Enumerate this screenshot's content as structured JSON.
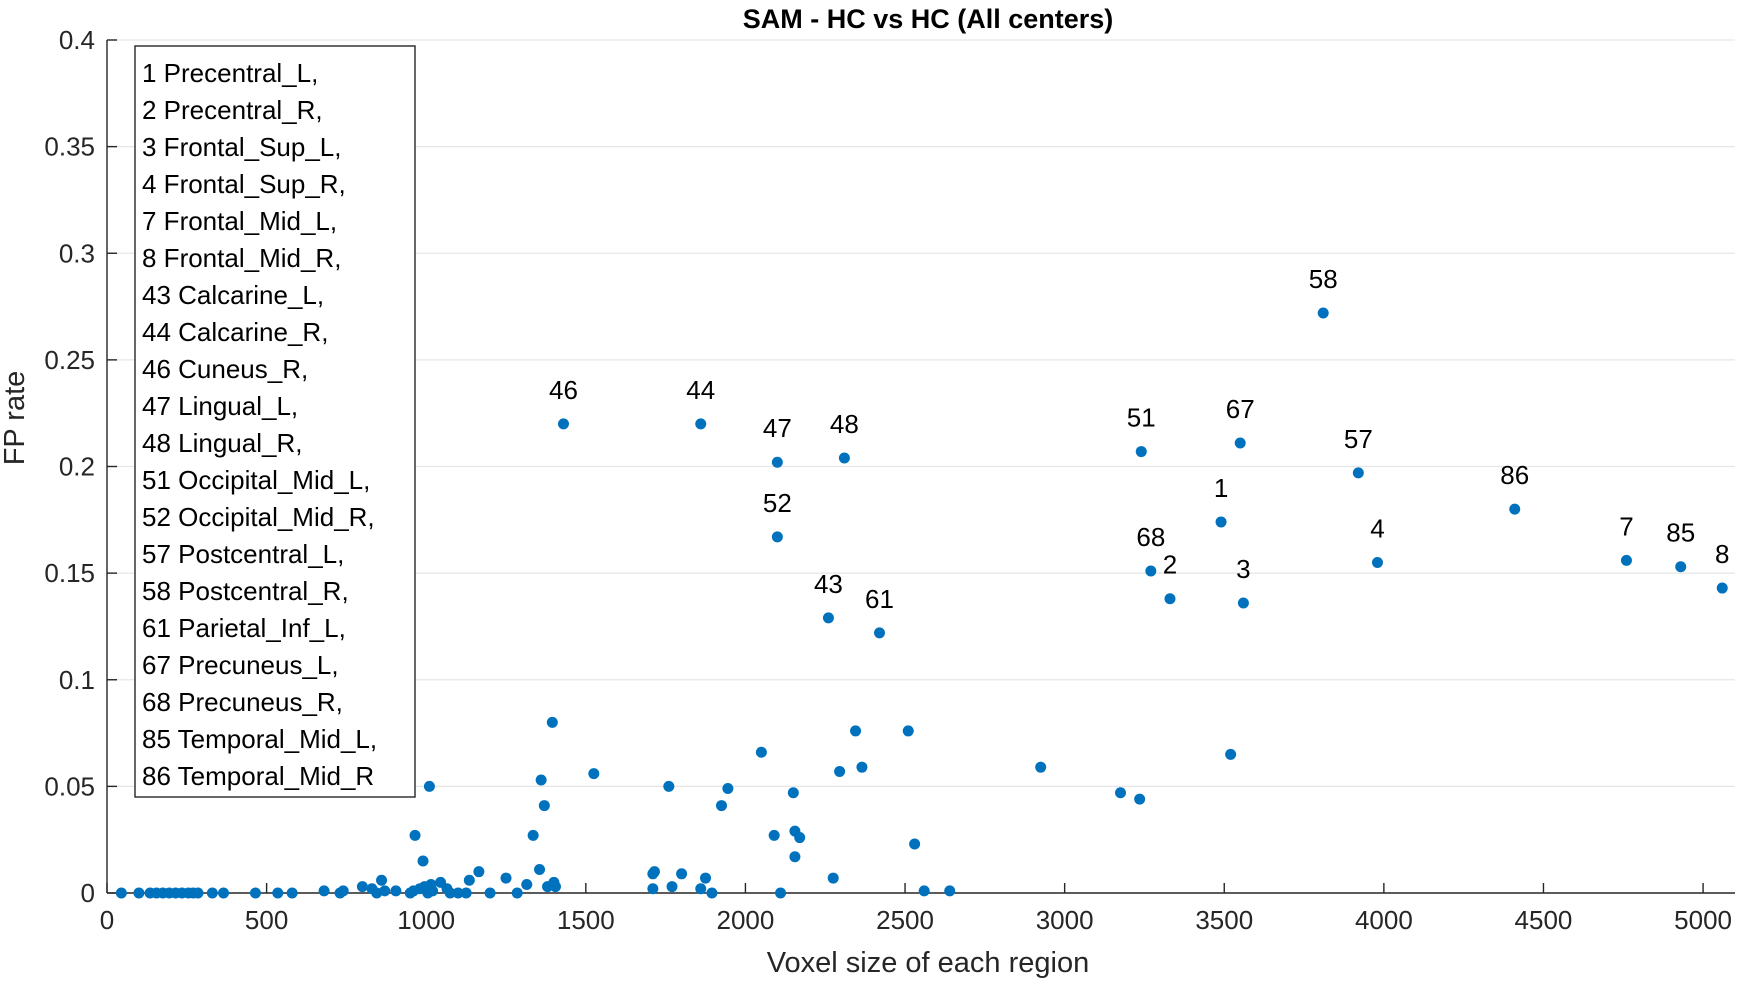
{
  "chart_data": {
    "type": "scatter",
    "title": "SAM - HC vs HC (All centers)",
    "xlabel": "Voxel size of each region",
    "ylabel": "FP rate",
    "xlim": [
      0,
      5100
    ],
    "ylim": [
      0,
      0.4
    ],
    "xticks": [
      0,
      500,
      1000,
      1500,
      2000,
      2500,
      3000,
      3500,
      4000,
      4500,
      5000
    ],
    "yticks": [
      0,
      0.05,
      0.1,
      0.15,
      0.2,
      0.25,
      0.3,
      0.35,
      0.4
    ],
    "xtick_labels": [
      "0",
      "500",
      "1000",
      "1500",
      "2000",
      "2500",
      "3000",
      "3500",
      "4000",
      "4500",
      "5000"
    ],
    "ytick_labels": [
      "0",
      "0.05",
      "0.1",
      "0.15",
      "0.2",
      "0.25",
      "0.3",
      "0.35",
      "0.4"
    ],
    "grid": "y-only",
    "marker_color": "#0072bd",
    "legend": [
      "1 Precentral_L,",
      "2 Precentral_R,",
      "3 Frontal_Sup_L,",
      "4 Frontal_Sup_R,",
      "7 Frontal_Mid_L,",
      "8 Frontal_Mid_R,",
      "43 Calcarine_L,",
      "44 Calcarine_R,",
      "46 Cuneus_R,",
      "47 Lingual_L,",
      "48 Lingual_R,",
      "51 Occipital_Mid_L,",
      "52 Occipital_Mid_R,",
      "57 Postcentral_L,",
      "58 Postcentral_R,",
      "61 Parietal_Inf_L,",
      "67 Precuneus_L,",
      "68 Precuneus_R,",
      "85 Temporal_Mid_L,",
      "86 Temporal_Mid_R"
    ],
    "labeled_points": [
      {
        "label": "1",
        "x": 3490,
        "y": 0.174
      },
      {
        "label": "2",
        "x": 3330,
        "y": 0.138
      },
      {
        "label": "3",
        "x": 3560,
        "y": 0.136
      },
      {
        "label": "4",
        "x": 3980,
        "y": 0.155
      },
      {
        "label": "7",
        "x": 4760,
        "y": 0.156
      },
      {
        "label": "8",
        "x": 5060,
        "y": 0.143
      },
      {
        "label": "43",
        "x": 2260,
        "y": 0.129
      },
      {
        "label": "44",
        "x": 1860,
        "y": 0.22
      },
      {
        "label": "46",
        "x": 1430,
        "y": 0.22
      },
      {
        "label": "47",
        "x": 2100,
        "y": 0.202
      },
      {
        "label": "48",
        "x": 2310,
        "y": 0.204
      },
      {
        "label": "51",
        "x": 3240,
        "y": 0.207
      },
      {
        "label": "52",
        "x": 2100,
        "y": 0.167
      },
      {
        "label": "57",
        "x": 3920,
        "y": 0.197
      },
      {
        "label": "58",
        "x": 3810,
        "y": 0.272
      },
      {
        "label": "61",
        "x": 2420,
        "y": 0.122
      },
      {
        "label": "67",
        "x": 3550,
        "y": 0.211
      },
      {
        "label": "68",
        "x": 3270,
        "y": 0.151
      },
      {
        "label": "85",
        "x": 4930,
        "y": 0.153
      },
      {
        "label": "86",
        "x": 4410,
        "y": 0.18
      }
    ],
    "points": [
      {
        "x": 45,
        "y": 0
      },
      {
        "x": 100,
        "y": 0
      },
      {
        "x": 135,
        "y": 0
      },
      {
        "x": 155,
        "y": 0
      },
      {
        "x": 175,
        "y": 0
      },
      {
        "x": 195,
        "y": 0
      },
      {
        "x": 215,
        "y": 0
      },
      {
        "x": 235,
        "y": 0
      },
      {
        "x": 255,
        "y": 0
      },
      {
        "x": 270,
        "y": 0
      },
      {
        "x": 285,
        "y": 0
      },
      {
        "x": 330,
        "y": 0
      },
      {
        "x": 365,
        "y": 0
      },
      {
        "x": 465,
        "y": 0
      },
      {
        "x": 535,
        "y": 0
      },
      {
        "x": 580,
        "y": 0
      },
      {
        "x": 680,
        "y": 0.001
      },
      {
        "x": 730,
        "y": 0
      },
      {
        "x": 740,
        "y": 0.001
      },
      {
        "x": 800,
        "y": 0.003
      },
      {
        "x": 830,
        "y": 0.002
      },
      {
        "x": 845,
        "y": 0
      },
      {
        "x": 860,
        "y": 0.006
      },
      {
        "x": 870,
        "y": 0.001
      },
      {
        "x": 905,
        "y": 0.001
      },
      {
        "x": 950,
        "y": 0
      },
      {
        "x": 960,
        "y": 0.001
      },
      {
        "x": 965,
        "y": 0.027
      },
      {
        "x": 980,
        "y": 0.002
      },
      {
        "x": 990,
        "y": 0.015
      },
      {
        "x": 995,
        "y": 0.003
      },
      {
        "x": 1005,
        "y": 0
      },
      {
        "x": 1010,
        "y": 0.05
      },
      {
        "x": 1015,
        "y": 0.004
      },
      {
        "x": 1020,
        "y": 0.001
      },
      {
        "x": 1045,
        "y": 0.005
      },
      {
        "x": 1065,
        "y": 0.002
      },
      {
        "x": 1075,
        "y": 0
      },
      {
        "x": 1100,
        "y": 0
      },
      {
        "x": 1125,
        "y": 0
      },
      {
        "x": 1135,
        "y": 0.006
      },
      {
        "x": 1165,
        "y": 0.01
      },
      {
        "x": 1200,
        "y": 0
      },
      {
        "x": 1250,
        "y": 0.007
      },
      {
        "x": 1285,
        "y": 0
      },
      {
        "x": 1315,
        "y": 0.004
      },
      {
        "x": 1335,
        "y": 0.027
      },
      {
        "x": 1355,
        "y": 0.011
      },
      {
        "x": 1360,
        "y": 0.053
      },
      {
        "x": 1370,
        "y": 0.041
      },
      {
        "x": 1380,
        "y": 0.003
      },
      {
        "x": 1395,
        "y": 0.08
      },
      {
        "x": 1400,
        "y": 0.005
      },
      {
        "x": 1405,
        "y": 0.003
      },
      {
        "x": 1525,
        "y": 0.056
      },
      {
        "x": 1710,
        "y": 0.002
      },
      {
        "x": 1710,
        "y": 0.009
      },
      {
        "x": 1715,
        "y": 0.01
      },
      {
        "x": 1760,
        "y": 0.05
      },
      {
        "x": 1770,
        "y": 0.003
      },
      {
        "x": 1800,
        "y": 0.009
      },
      {
        "x": 1860,
        "y": 0.002
      },
      {
        "x": 1875,
        "y": 0.007
      },
      {
        "x": 1895,
        "y": 0
      },
      {
        "x": 1925,
        "y": 0.041
      },
      {
        "x": 1945,
        "y": 0.049
      },
      {
        "x": 2050,
        "y": 0.066
      },
      {
        "x": 2090,
        "y": 0.027
      },
      {
        "x": 2110,
        "y": 0
      },
      {
        "x": 2150,
        "y": 0.047
      },
      {
        "x": 2155,
        "y": 0.029
      },
      {
        "x": 2155,
        "y": 0.017
      },
      {
        "x": 2170,
        "y": 0.026
      },
      {
        "x": 2275,
        "y": 0.007
      },
      {
        "x": 2295,
        "y": 0.057
      },
      {
        "x": 2345,
        "y": 0.076
      },
      {
        "x": 2365,
        "y": 0.059
      },
      {
        "x": 2510,
        "y": 0.076
      },
      {
        "x": 2530,
        "y": 0.023
      },
      {
        "x": 2560,
        "y": 0.001
      },
      {
        "x": 2640,
        "y": 0.001
      },
      {
        "x": 2925,
        "y": 0.059
      },
      {
        "x": 3175,
        "y": 0.047
      },
      {
        "x": 3235,
        "y": 0.044
      },
      {
        "x": 3520,
        "y": 0.065
      }
    ]
  }
}
